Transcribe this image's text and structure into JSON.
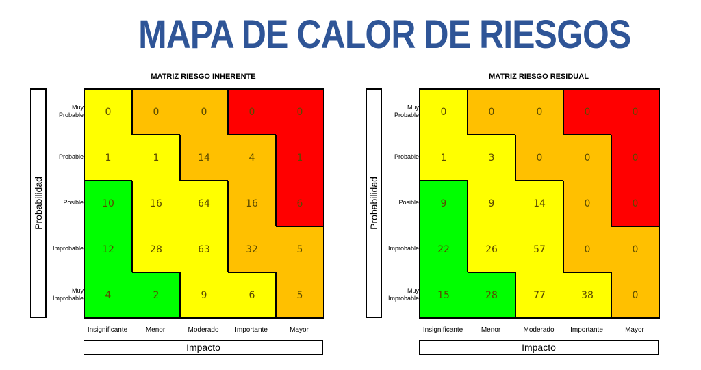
{
  "title": "MAPA DE CALOR DE RIESGOS",
  "colors": {
    "title": "#2f5597",
    "green": "#00ff00",
    "yellow": "#ffff00",
    "orange": "#ffc000",
    "red": "#ff0000"
  },
  "chart_data": [
    {
      "type": "heatmap",
      "title": "MATRIZ RIESGO INHERENTE",
      "ylabel": "Probabilidad",
      "xlabel": "Impacto",
      "rows": [
        "Muy Probable",
        "Probable",
        "Posible",
        "Improbable",
        "Muy Improbable"
      ],
      "columns": [
        "Insignificante",
        "Menor",
        "Moderado",
        "Importante",
        "Mayor"
      ],
      "values": [
        [
          0,
          0,
          0,
          0,
          0
        ],
        [
          1,
          1,
          14,
          4,
          1
        ],
        [
          10,
          16,
          64,
          16,
          6
        ],
        [
          12,
          28,
          63,
          32,
          5
        ],
        [
          4,
          2,
          9,
          6,
          5
        ]
      ],
      "cell_colors": [
        [
          "yellow",
          "orange",
          "orange",
          "red",
          "red"
        ],
        [
          "yellow",
          "yellow",
          "orange",
          "orange",
          "red"
        ],
        [
          "green",
          "yellow",
          "yellow",
          "orange",
          "red"
        ],
        [
          "green",
          "yellow",
          "yellow",
          "orange",
          "orange"
        ],
        [
          "green",
          "green",
          "yellow",
          "yellow",
          "orange"
        ]
      ]
    },
    {
      "type": "heatmap",
      "title": "MATRIZ RIESGO RESIDUAL",
      "ylabel": "Probabilidad",
      "xlabel": "Impacto",
      "rows": [
        "Muy Probable",
        "Probable",
        "Posible",
        "Improbable",
        "Muy Improbable"
      ],
      "columns": [
        "Insignificante",
        "Menor",
        "Moderado",
        "Importante",
        "Mayor"
      ],
      "values": [
        [
          0,
          0,
          0,
          0,
          0
        ],
        [
          1,
          3,
          0,
          0,
          0
        ],
        [
          9,
          9,
          14,
          0,
          0
        ],
        [
          22,
          26,
          57,
          0,
          0
        ],
        [
          15,
          28,
          77,
          38,
          0
        ]
      ],
      "cell_colors": [
        [
          "yellow",
          "orange",
          "orange",
          "red",
          "red"
        ],
        [
          "yellow",
          "yellow",
          "orange",
          "orange",
          "red"
        ],
        [
          "green",
          "yellow",
          "yellow",
          "orange",
          "red"
        ],
        [
          "green",
          "yellow",
          "yellow",
          "orange",
          "orange"
        ],
        [
          "green",
          "green",
          "yellow",
          "yellow",
          "orange"
        ]
      ]
    }
  ]
}
